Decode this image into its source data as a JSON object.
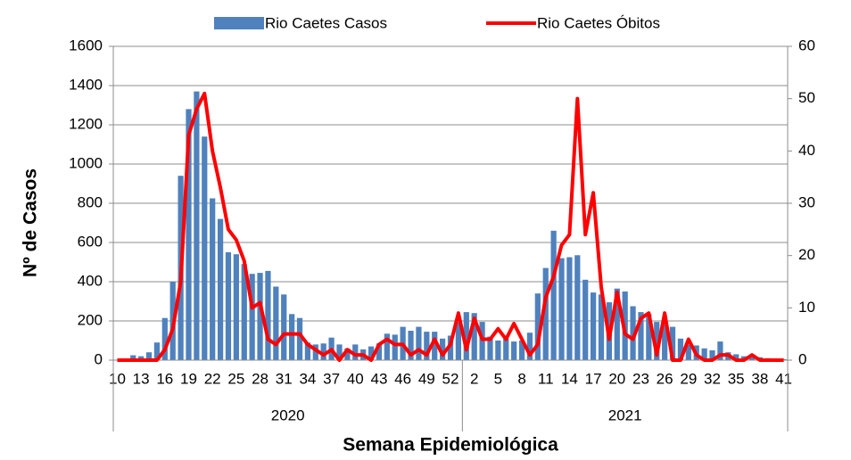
{
  "chart_data": {
    "type": "bar_line",
    "y_axis_label": "Nº de Casos",
    "x_axis_label": "Semana Epidemiológica",
    "categories": [
      "10",
      null,
      null,
      "13",
      null,
      null,
      "16",
      null,
      null,
      "19",
      null,
      null,
      "22",
      null,
      null,
      "25",
      null,
      null,
      "28",
      null,
      null,
      "31",
      null,
      null,
      "34",
      null,
      null,
      "37",
      null,
      null,
      "40",
      null,
      null,
      "43",
      null,
      null,
      "46",
      null,
      null,
      "49",
      null,
      null,
      "52",
      null,
      null,
      "2",
      null,
      null,
      "5",
      null,
      null,
      "8",
      null,
      null,
      "11",
      null,
      null,
      "14",
      null,
      null,
      "17",
      null,
      null,
      "20",
      null,
      null,
      "23",
      null,
      null,
      "26",
      null,
      null,
      "29",
      null,
      null,
      "32",
      null,
      null,
      "35",
      null,
      null,
      "38",
      null,
      null,
      "41"
    ],
    "groups": [
      {
        "name": "2020",
        "size": 44
      },
      {
        "name": "2021",
        "size": 41
      }
    ],
    "series": [
      {
        "name": "Rio Caetes Casos",
        "kind": "bar",
        "color": "#4f81bd",
        "values": [
          0,
          5,
          25,
          20,
          40,
          90,
          215,
          400,
          940,
          1280,
          1370,
          1140,
          825,
          720,
          550,
          540,
          490,
          440,
          445,
          455,
          375,
          335,
          235,
          215,
          90,
          80,
          85,
          115,
          80,
          60,
          80,
          55,
          70,
          85,
          135,
          130,
          170,
          150,
          170,
          145,
          145,
          110,
          125,
          195,
          245,
          240,
          195,
          120,
          100,
          110,
          95,
          100,
          140,
          340,
          470,
          660,
          520,
          525,
          535,
          410,
          345,
          335,
          295,
          365,
          350,
          275,
          245,
          235,
          195,
          185,
          170,
          110,
          80,
          75,
          60,
          50,
          95,
          40,
          30,
          20,
          15,
          15,
          10,
          5,
          5
        ]
      },
      {
        "name": "Rio Caetes Óbitos",
        "kind": "line",
        "axis": "y2",
        "color": "#ff0000",
        "values": [
          0,
          0,
          0,
          0,
          0,
          0,
          2,
          6,
          15,
          43,
          48,
          51,
          40,
          33,
          25,
          23,
          19,
          10,
          11,
          4,
          3,
          5,
          5,
          5,
          3,
          2,
          1,
          2,
          0,
          2,
          1,
          1,
          0,
          3,
          4,
          3,
          3,
          1,
          2,
          1,
          4,
          1,
          3,
          9,
          2,
          8,
          4,
          4,
          6,
          4,
          7,
          4,
          1,
          3,
          12,
          16,
          22,
          24,
          50,
          24,
          32,
          14,
          4,
          13,
          5,
          4,
          8,
          9,
          1,
          9,
          0,
          0,
          4,
          1,
          0,
          0,
          1,
          1,
          0,
          0,
          1,
          0,
          0,
          0,
          0
        ]
      }
    ],
    "ylim": [
      0,
      1600
    ],
    "yticks": [
      0,
      200,
      400,
      600,
      800,
      1000,
      1200,
      1400,
      1600
    ],
    "y2lim": [
      0,
      60
    ],
    "y2ticks": [
      0,
      10,
      20,
      30,
      40,
      50,
      60
    ],
    "grid": true
  }
}
